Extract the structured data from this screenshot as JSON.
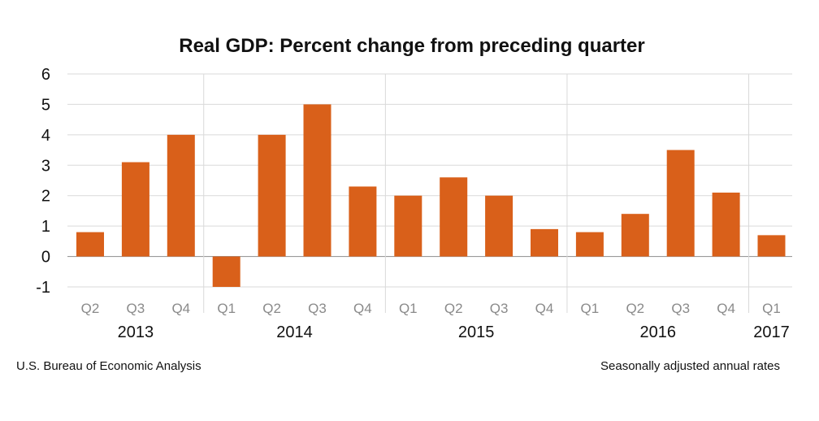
{
  "chart_data": {
    "type": "bar",
    "title": "Real GDP:  Percent change from preceding quarter",
    "xlabel": "",
    "ylabel": "",
    "ylim": [
      -1,
      6
    ],
    "yticks": [
      "6",
      "5",
      "4",
      "3",
      "2",
      "1",
      "0",
      "-1"
    ],
    "categories": [
      "Q2",
      "Q3",
      "Q4",
      "Q1",
      "Q2",
      "Q3",
      "Q4",
      "Q1",
      "Q2",
      "Q3",
      "Q4",
      "Q1",
      "Q2",
      "Q3",
      "Q4",
      "Q1"
    ],
    "years": [
      {
        "label": "2013",
        "start": 0,
        "end": 2
      },
      {
        "label": "2014",
        "start": 3,
        "end": 6
      },
      {
        "label": "2015",
        "start": 7,
        "end": 10
      },
      {
        "label": "2016",
        "start": 11,
        "end": 14
      },
      {
        "label": "2017",
        "start": 15,
        "end": 15
      }
    ],
    "values": [
      0.8,
      3.1,
      4.0,
      -1.0,
      4.0,
      5.0,
      2.3,
      2.0,
      2.6,
      2.0,
      0.9,
      0.8,
      1.4,
      3.5,
      2.1,
      0.7
    ],
    "bar_color": "#d9601a",
    "grid": true,
    "legend": "none"
  },
  "footer": {
    "source": "U.S. Bureau of Economic Analysis",
    "note": "Seasonally adjusted annual  rates"
  }
}
